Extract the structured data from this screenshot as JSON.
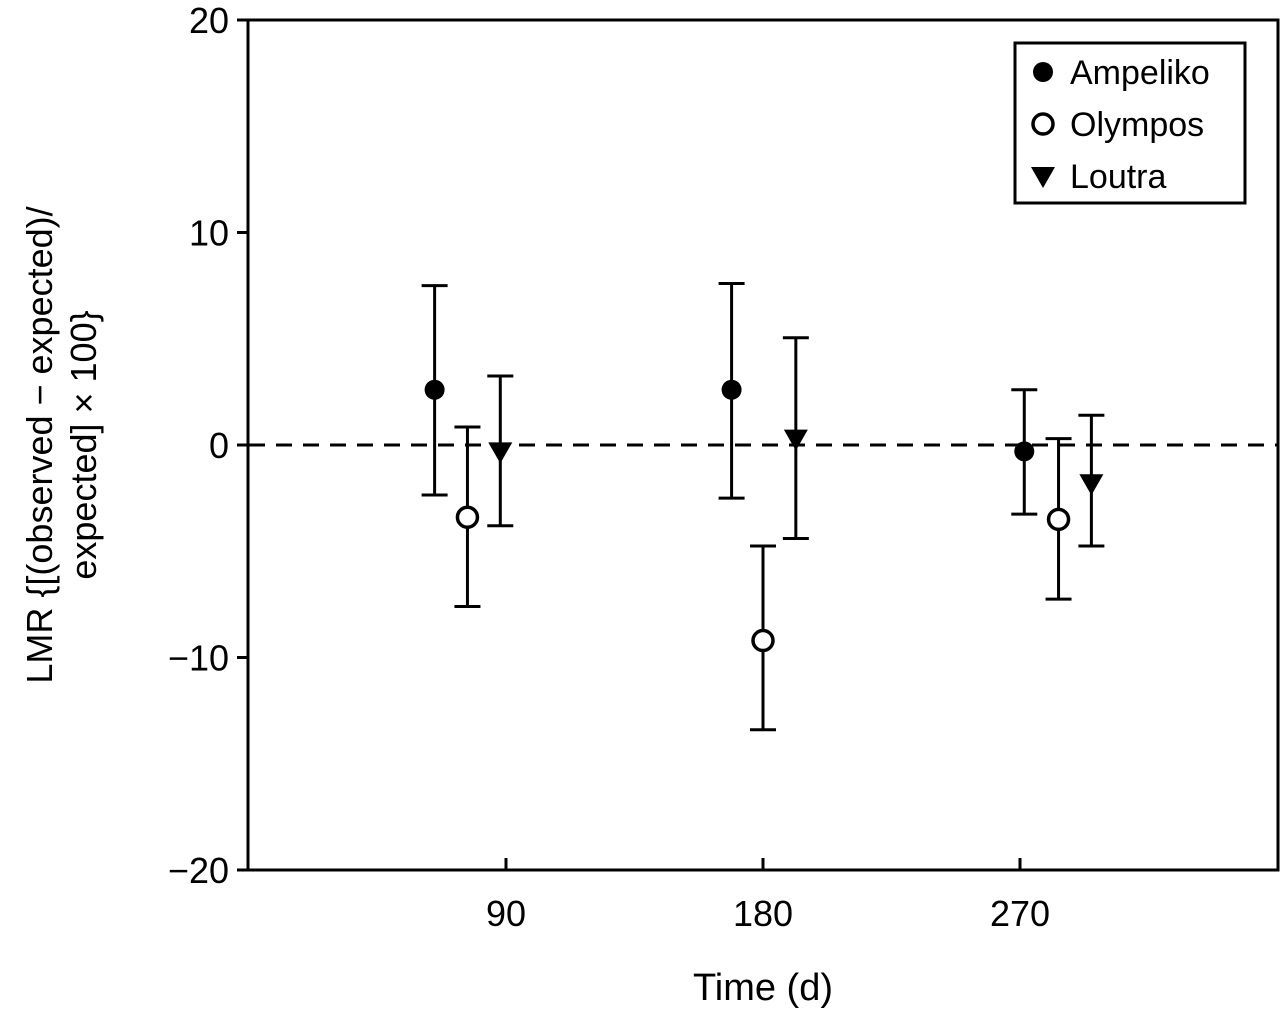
{
  "chart_data": {
    "type": "scatter",
    "title": "",
    "xlabel": "Time (d)",
    "ylabel_lines": [
      "LMR {[(observed − expected)/",
      "expected] × 100}"
    ],
    "xlim": [
      0,
      360
    ],
    "ylim": [
      -20,
      20
    ],
    "xticks": [
      90,
      180,
      270
    ],
    "xtick_labels": [
      "90",
      "180",
      "270"
    ],
    "yticks": [
      -20,
      -10,
      0,
      10,
      20
    ],
    "ytick_labels": [
      "−20",
      "−10",
      "0",
      "10",
      "20"
    ],
    "grid": false,
    "reference_line": {
      "y": 0,
      "style": "dashed"
    },
    "legend_position": "top-right",
    "series": [
      {
        "name": "Ampeliko",
        "marker": "filled-circle",
        "x": [
          65,
          169,
          271.5
        ],
        "y": [
          2.6,
          2.6,
          -0.3
        ],
        "err_upper": [
          7.5,
          7.6,
          2.6
        ],
        "err_lower": [
          -2.35,
          -2.5,
          -3.25
        ]
      },
      {
        "name": "Olympos",
        "marker": "open-circle",
        "x": [
          76.5,
          180,
          283.5
        ],
        "y": [
          -3.4,
          -9.2,
          -3.5
        ],
        "err_upper": [
          0.85,
          -4.75,
          0.3
        ],
        "err_lower": [
          -7.6,
          -13.4,
          -7.25
        ]
      },
      {
        "name": "Loutra",
        "marker": "filled-triangle-down",
        "x": [
          88,
          191.5,
          295
        ],
        "y": [
          -0.3,
          0.3,
          -1.8
        ],
        "err_upper": [
          3.25,
          5.05,
          1.4
        ],
        "err_lower": [
          -3.8,
          -4.4,
          -4.75
        ]
      }
    ]
  }
}
